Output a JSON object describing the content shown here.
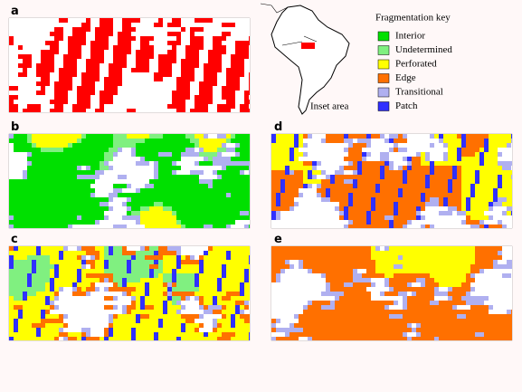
{
  "panels": [
    {
      "label": "a"
    },
    {
      "label": "b"
    },
    {
      "label": "c"
    },
    {
      "label": "d"
    },
    {
      "label": "e"
    }
  ],
  "inset": {
    "label": "Inset area"
  },
  "legend": {
    "title": "Fragmentation key",
    "items": [
      {
        "label": "Interior",
        "color": "#00e000"
      },
      {
        "label": "Undetermined",
        "color": "#80f080"
      },
      {
        "label": "Perforated",
        "color": "#ffff00"
      },
      {
        "label": "Edge",
        "color": "#ff7000"
      },
      {
        "label": "Transitional",
        "color": "#b0b0f0"
      },
      {
        "label": "Patch",
        "color": "#3030ff"
      }
    ]
  }
}
